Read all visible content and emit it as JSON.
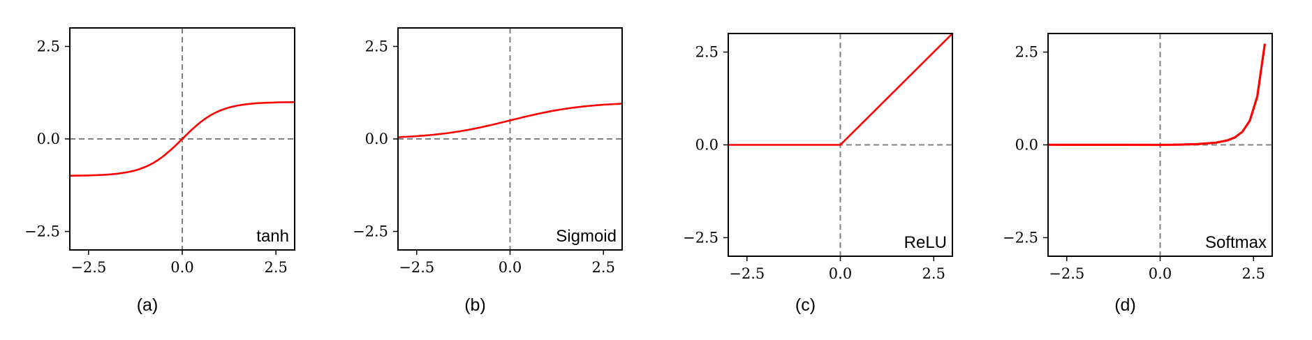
{
  "chart_data": [
    {
      "type": "line",
      "caption": "(a)",
      "function_label": "tanh",
      "function": "tanh",
      "xlim": [
        -3,
        3
      ],
      "ylim": [
        -3,
        3
      ],
      "xticks": [
        -2.5,
        0.0,
        2.5
      ],
      "yticks": [
        -2.5,
        0.0,
        2.5
      ],
      "xtick_labels": [
        "−2.5",
        "0.0",
        "2.5"
      ],
      "ytick_labels": [
        "−2.5",
        "0.0",
        "2.5"
      ],
      "grid": false,
      "reference_lines": {
        "x": 0,
        "y": 0,
        "style": "dashed",
        "color": "#808080"
      },
      "series": [
        {
          "color": "#ff0000",
          "x": [
            -3,
            -2.5,
            -2,
            -1.5,
            -1,
            -0.5,
            0,
            0.5,
            1,
            1.5,
            2,
            2.5,
            3
          ],
          "y": [
            -0.995,
            -0.987,
            -0.964,
            -0.905,
            -0.762,
            -0.462,
            0,
            0.462,
            0.762,
            0.905,
            0.964,
            0.987,
            0.995
          ]
        }
      ]
    },
    {
      "type": "line",
      "caption": "(b)",
      "function_label": "Sigmoid",
      "function": "sigmoid",
      "xlim": [
        -3,
        3
      ],
      "ylim": [
        -3,
        3
      ],
      "xticks": [
        -2.5,
        0.0,
        2.5
      ],
      "yticks": [
        -2.5,
        0.0,
        2.5
      ],
      "xtick_labels": [
        "−2.5",
        "0.0",
        "2.5"
      ],
      "ytick_labels": [
        "−2.5",
        "0.0",
        "2.5"
      ],
      "grid": false,
      "reference_lines": {
        "x": 0,
        "y": 0,
        "style": "dashed",
        "color": "#808080"
      },
      "series": [
        {
          "color": "#ff0000",
          "x": [
            -3,
            -2.5,
            -2,
            -1.5,
            -1,
            -0.5,
            0,
            0.5,
            1,
            1.5,
            2,
            2.5,
            3
          ],
          "y": [
            0.047,
            0.076,
            0.119,
            0.182,
            0.269,
            0.378,
            0.5,
            0.622,
            0.731,
            0.818,
            0.881,
            0.924,
            0.953
          ]
        }
      ]
    },
    {
      "type": "line",
      "caption": "(c)",
      "function_label": "ReLU",
      "function": "relu",
      "xlim": [
        -3,
        3
      ],
      "ylim": [
        -3,
        3
      ],
      "xticks": [
        -2.5,
        0.0,
        2.5
      ],
      "yticks": [
        -2.5,
        0.0,
        2.5
      ],
      "xtick_labels": [
        "−2.5",
        "0.0",
        "2.5"
      ],
      "ytick_labels": [
        "−2.5",
        "0.0",
        "2.5"
      ],
      "grid": false,
      "reference_lines": {
        "x": 0,
        "y": 0,
        "style": "dashed",
        "color": "#808080"
      },
      "series": [
        {
          "color": "#ff0000",
          "x": [
            -3,
            0,
            3
          ],
          "y": [
            0,
            0,
            3
          ]
        }
      ]
    },
    {
      "type": "line",
      "caption": "(d)",
      "function_label": "Softmax",
      "function": "softmax",
      "xlim": [
        -3,
        3
      ],
      "ylim": [
        -3,
        3
      ],
      "xticks": [
        -2.5,
        0.0,
        2.5
      ],
      "yticks": [
        -2.5,
        0.0,
        2.5
      ],
      "xtick_labels": [
        "−2.5",
        "0.0",
        "2.5"
      ],
      "ytick_labels": [
        "−2.5",
        "0.0",
        "2.5"
      ],
      "grid": false,
      "reference_lines": {
        "x": 0,
        "y": 0,
        "style": "dashed",
        "color": "#808080"
      },
      "series": [
        {
          "color": "#ff0000",
          "x": [
            -3,
            -2,
            -1,
            0,
            0.5,
            1,
            1.5,
            1.8,
            2,
            2.2,
            2.4,
            2.6,
            2.8
          ],
          "y": [
            0.003,
            0.002,
            0.001,
            0.0,
            0.005,
            0.02,
            0.06,
            0.12,
            0.2,
            0.35,
            0.65,
            1.3,
            2.7
          ]
        }
      ]
    }
  ]
}
